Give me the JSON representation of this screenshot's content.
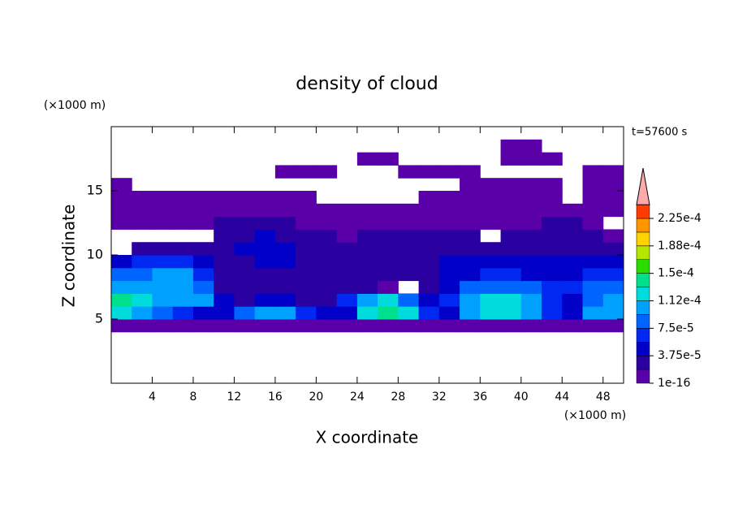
{
  "chart_data": {
    "type": "contour",
    "title": "density of cloud",
    "x_label": "X coordinate",
    "y_label": "Z coordinate",
    "x_unit": "(×1000 m)",
    "y_unit": "(×1000 m)",
    "annotation": "t=57600 s",
    "xlim": [
      0,
      50
    ],
    "ylim": [
      0,
      20
    ],
    "xticks": [
      4,
      8,
      12,
      16,
      20,
      24,
      28,
      32,
      36,
      40,
      44,
      48
    ],
    "yticks": [
      5,
      10,
      15
    ],
    "x": [
      1,
      3,
      5,
      7,
      9,
      11,
      13,
      15,
      17,
      19,
      21,
      23,
      25,
      27,
      29,
      31,
      33,
      35,
      37,
      39,
      41,
      43,
      45,
      47,
      49
    ],
    "y": [
      4.5,
      5.5,
      6.5,
      7.5,
      8.5,
      9.5,
      10.5,
      11.5,
      12.5,
      13.5,
      14.5,
      15.5,
      16.5,
      17.5,
      18.5
    ],
    "z": [
      [
        1e-05,
        1e-05,
        1e-05,
        1e-05,
        1e-05,
        1e-05,
        1e-05,
        1e-05,
        1e-05,
        1e-05,
        1e-05,
        1e-05,
        1e-05,
        1e-05,
        1e-05,
        1e-05,
        1e-05,
        1e-05,
        1e-05,
        1e-05,
        1e-05,
        1e-05,
        1e-05,
        1e-05,
        1e-05
      ],
      [
        0.00013,
        0.00011,
        9e-05,
        7e-05,
        5e-05,
        4e-05,
        9e-05,
        0.0001,
        0.0001,
        6e-05,
        5e-05,
        4e-05,
        0.00012,
        0.00014,
        0.00013,
        6e-05,
        4e-05,
        0.00011,
        0.00012,
        0.00013,
        0.00011,
        6e-05,
        4e-05,
        0.0001,
        0.00011
      ],
      [
        0.00014,
        0.00013,
        0.00011,
        0.00011,
        0.0001,
        5e-05,
        3e-05,
        4e-05,
        4e-05,
        3e-05,
        3e-05,
        6e-05,
        0.00011,
        0.00012,
        9e-05,
        4e-05,
        6e-05,
        0.00011,
        0.00012,
        0.00012,
        0.0001,
        7e-05,
        5e-05,
        9e-05,
        0.0001
      ],
      [
        0.0001,
        0.0001,
        0.00011,
        0.00011,
        9e-05,
        3e-05,
        2e-05,
        3e-05,
        3e-05,
        2e-05,
        2e-05,
        3e-05,
        2e-05,
        1e-05,
        null,
        2e-05,
        5e-05,
        8e-05,
        9e-05,
        9e-05,
        8e-05,
        6e-05,
        6e-05,
        8e-05,
        8e-05
      ],
      [
        8e-05,
        9e-05,
        0.0001,
        0.0001,
        7e-05,
        3e-05,
        2e-05,
        3e-05,
        3e-05,
        2e-05,
        2e-05,
        2e-05,
        2e-05,
        2e-05,
        2e-05,
        3e-05,
        4e-05,
        5e-05,
        6e-05,
        6e-05,
        5e-05,
        5e-05,
        5e-05,
        6e-05,
        6e-05
      ],
      [
        5e-05,
        6e-05,
        7e-05,
        6e-05,
        5e-05,
        3e-05,
        3e-05,
        4e-05,
        4e-05,
        3e-05,
        2e-05,
        2e-05,
        3e-05,
        3e-05,
        3e-05,
        3e-05,
        4e-05,
        4e-05,
        4e-05,
        4e-05,
        4e-05,
        4e-05,
        4e-05,
        4e-05,
        5e-05
      ],
      [
        null,
        3e-05,
        3e-05,
        3e-05,
        3e-05,
        2e-05,
        4e-05,
        5e-05,
        4e-05,
        3e-05,
        2e-05,
        2e-05,
        2e-05,
        2e-05,
        3e-05,
        3e-05,
        2e-05,
        3e-05,
        3e-05,
        3e-05,
        3e-05,
        3e-05,
        3e-05,
        3e-05,
        3e-05
      ],
      [
        null,
        null,
        null,
        null,
        null,
        2e-05,
        3e-05,
        4e-05,
        3e-05,
        2e-05,
        2e-05,
        1e-05,
        2e-05,
        2e-05,
        2e-05,
        2e-05,
        2e-05,
        2e-05,
        null,
        2e-05,
        2e-05,
        2e-05,
        2e-05,
        2e-05,
        1e-05
      ],
      [
        1e-05,
        1e-05,
        1e-05,
        1e-05,
        1e-05,
        2e-05,
        2e-05,
        2e-05,
        2e-05,
        1e-05,
        1e-05,
        1e-05,
        1e-05,
        1e-05,
        1e-05,
        1e-05,
        1e-05,
        1e-05,
        1e-05,
        1e-05,
        1e-05,
        2e-05,
        2e-05,
        1e-05,
        null
      ],
      [
        1e-05,
        1e-05,
        1e-05,
        1e-05,
        1e-05,
        1e-05,
        1e-05,
        1e-05,
        1e-05,
        1e-05,
        1e-05,
        1e-05,
        1e-05,
        1e-05,
        1e-05,
        1e-05,
        1e-05,
        1e-05,
        1e-05,
        1e-05,
        1e-05,
        1e-05,
        1e-05,
        1e-05,
        1e-05
      ],
      [
        1e-05,
        1e-05,
        1e-05,
        1e-05,
        1e-05,
        1e-05,
        1e-05,
        1e-05,
        1e-05,
        1e-05,
        null,
        null,
        null,
        null,
        null,
        1e-05,
        1e-05,
        1e-05,
        1e-05,
        1e-05,
        1e-05,
        1e-05,
        null,
        1e-05,
        1e-05
      ],
      [
        1e-05,
        null,
        null,
        null,
        null,
        null,
        null,
        null,
        null,
        null,
        null,
        null,
        null,
        null,
        null,
        null,
        null,
        1e-05,
        1e-05,
        1e-05,
        1e-05,
        1e-05,
        null,
        1e-05,
        1e-05
      ],
      [
        null,
        null,
        null,
        null,
        null,
        null,
        null,
        null,
        1e-05,
        1e-05,
        1e-05,
        null,
        null,
        null,
        1e-05,
        1e-05,
        1e-05,
        1e-05,
        null,
        null,
        null,
        null,
        null,
        1e-05,
        1e-05
      ],
      [
        null,
        null,
        null,
        null,
        null,
        null,
        null,
        null,
        null,
        null,
        null,
        null,
        1e-05,
        1e-05,
        null,
        null,
        null,
        null,
        null,
        1e-05,
        1e-05,
        1e-05,
        null,
        null,
        null
      ],
      [
        null,
        null,
        null,
        null,
        null,
        null,
        null,
        null,
        null,
        null,
        null,
        null,
        null,
        null,
        null,
        null,
        null,
        null,
        null,
        1e-05,
        1e-05,
        null,
        null,
        null,
        null
      ]
    ],
    "levels": [
      1e-16,
      1.875e-05,
      3.75e-05,
      5.625e-05,
      7.5e-05,
      9.375e-05,
      0.0001125,
      0.00013125,
      0.00015,
      0.00016875,
      0.0001875,
      0.00020625,
      0.000225
    ],
    "colors": [
      "#5a00a8",
      "#2a00a0",
      "#0000c8",
      "#0028f0",
      "#0064ff",
      "#00a0ff",
      "#00dcdc",
      "#00e08c",
      "#28dc00",
      "#b4e600",
      "#ffd200",
      "#ff9600",
      "#ff3c00"
    ],
    "extend_color": "#ffaaaa",
    "colorbar_ticks": [
      {
        "value": 1e-16,
        "label": "1e-16"
      },
      {
        "value": 3.75e-05,
        "label": "3.75e-5"
      },
      {
        "value": 7.5e-05,
        "label": "7.5e-5"
      },
      {
        "value": 0.0001125,
        "label": "1.12e-4"
      },
      {
        "value": 0.00015,
        "label": "1.5e-4"
      },
      {
        "value": 0.0001875,
        "label": "1.88e-4"
      },
      {
        "value": 0.000225,
        "label": "2.25e-4"
      }
    ]
  }
}
